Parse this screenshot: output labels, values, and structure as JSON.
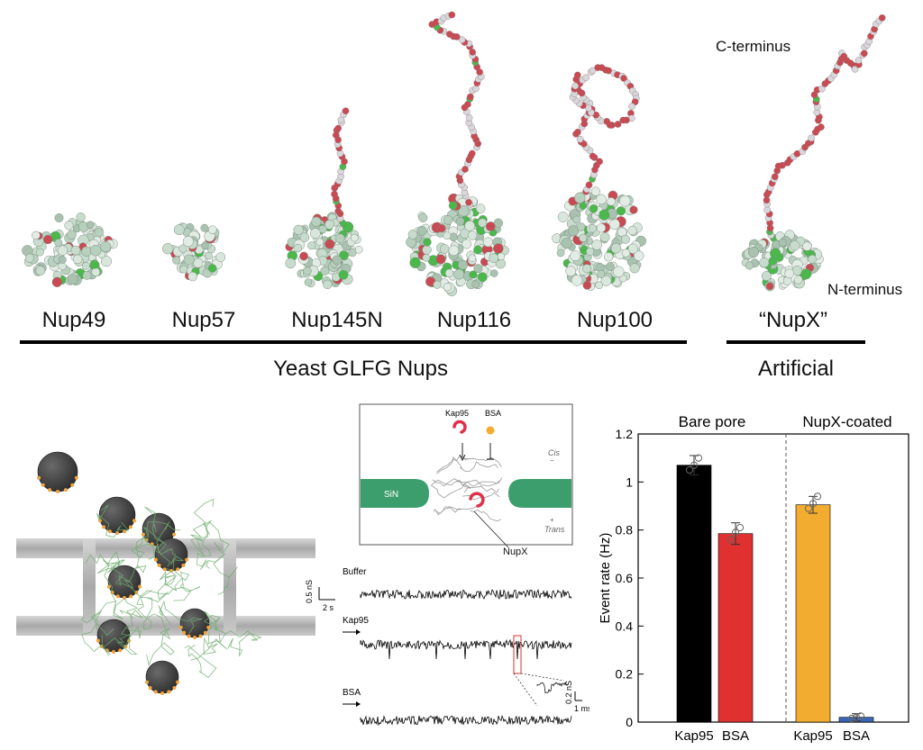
{
  "top_panel": {
    "proteins": [
      {
        "label": "Nup49"
      },
      {
        "label": "Nup57"
      },
      {
        "label": "Nup145N"
      },
      {
        "label": "Nup116"
      },
      {
        "label": "Nup100"
      },
      {
        "label": "“NupX”"
      }
    ],
    "c_terminus": "C-terminus",
    "n_terminus": "N-terminus",
    "group_yeast": "Yeast GLFG Nups",
    "group_artificial": "Artificial"
  },
  "schematic": {
    "kap95": "Kap95",
    "bsa": "BSA",
    "sin": "SiN",
    "cis": "Cis",
    "trans": "Trans",
    "nupx": "NupX"
  },
  "traces": {
    "buffer": "Buffer",
    "kap95": "Kap95",
    "bsa": "BSA",
    "scale_y": "0.5 nS",
    "scale_x": "2 s",
    "inset_y": "0.2 nS",
    "inset_x": "1 ms"
  },
  "colors": {
    "kap95_bare": "#000000",
    "bsa_bare": "#e03030",
    "kap95_coated": "#f2ac2f",
    "bsa_coated": "#3a67b5",
    "sin": "#3d9e6d",
    "nup_green": "#4ab84a",
    "nup_red": "#c94a52"
  },
  "chart_data": {
    "type": "bar",
    "ylabel": "Event rate (Hz)",
    "ylim": [
      0,
      1.2
    ],
    "yticks": [
      "0",
      "0.2",
      "0.4",
      "0.6",
      "0.8",
      "1",
      "1.2"
    ],
    "groups": [
      "Bare pore",
      "NupX-coated"
    ],
    "categories": [
      "Kap95",
      "BSA",
      "Kap95",
      "BSA"
    ],
    "values": [
      1.07,
      0.785,
      0.905,
      0.02
    ],
    "errors": [
      0.04,
      0.045,
      0.035,
      0.015
    ],
    "points": [
      [
        1.05,
        1.07,
        1.1
      ],
      [
        0.76,
        0.79,
        0.81
      ],
      [
        0.89,
        0.91,
        0.94
      ],
      [
        0.015,
        0.02,
        0.025
      ]
    ],
    "colors": [
      "#000000",
      "#e03030",
      "#f2ac2f",
      "#3a67b5"
    ]
  }
}
